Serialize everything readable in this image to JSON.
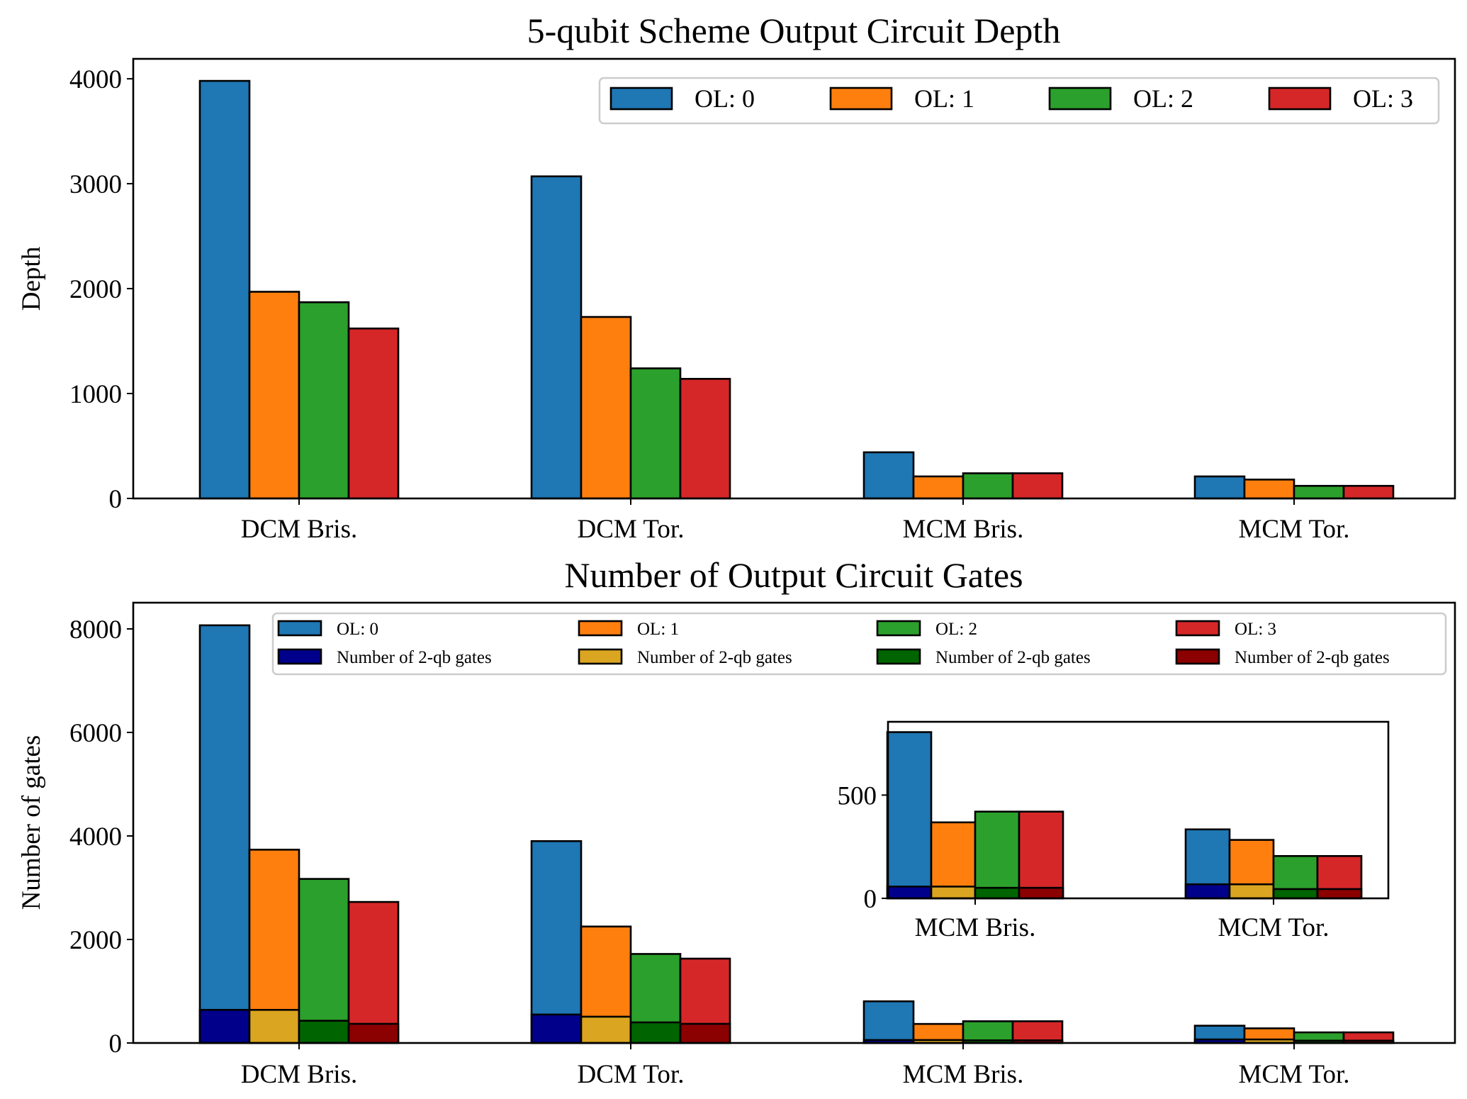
{
  "chart_data": [
    {
      "type": "bar",
      "title": "5-qubit Scheme Output Circuit Depth",
      "xlabel": "",
      "ylabel": "Depth",
      "categories": [
        "DCM Bris.",
        "DCM Tor.",
        "MCM Bris.",
        "MCM Tor."
      ],
      "yticks": [
        0,
        1000,
        2000,
        3000,
        4000
      ],
      "ylim": [
        0,
        4190
      ],
      "legend_placement": "top-right",
      "series": [
        {
          "name": "OL: 0",
          "color": "#1f77b4",
          "values": [
            3980,
            3070,
            440,
            210
          ]
        },
        {
          "name": "OL: 1",
          "color": "#ff7f0e",
          "values": [
            1970,
            1730,
            210,
            180
          ]
        },
        {
          "name": "OL: 2",
          "color": "#2ca02c",
          "values": [
            1870,
            1240,
            240,
            120
          ]
        },
        {
          "name": "OL: 3",
          "color": "#d62728",
          "values": [
            1620,
            1140,
            240,
            120
          ]
        }
      ]
    },
    {
      "type": "bar",
      "title": "Number of Output Circuit Gates",
      "xlabel": "",
      "ylabel": "Number of gates",
      "categories": [
        "DCM Bris.",
        "DCM Tor.",
        "MCM Bris.",
        "MCM Tor."
      ],
      "yticks": [
        0,
        2000,
        4000,
        6000,
        8000
      ],
      "ylim": [
        0,
        8507
      ],
      "legend_placement": "top-right",
      "series": [
        {
          "name": "OL: 0",
          "color": "#1f77b4",
          "values": [
            8070,
            3900,
            805,
            334
          ]
        },
        {
          "name": "OL: 1",
          "color": "#ff7f0e",
          "values": [
            3735,
            2250,
            368,
            283
          ]
        },
        {
          "name": "OL: 2",
          "color": "#2ca02c",
          "values": [
            3170,
            1720,
            420,
            205
          ]
        },
        {
          "name": "OL: 3",
          "color": "#d62728",
          "values": [
            2725,
            1630,
            420,
            205
          ]
        }
      ],
      "overlay_series": [
        {
          "name": "Number of 2-qb gates",
          "color": "#00008b",
          "values": [
            640,
            550,
            57,
            68
          ]
        },
        {
          "name": "Number of 2-qb gates",
          "color": "#daa520",
          "values": [
            640,
            508,
            57,
            68
          ]
        },
        {
          "name": "Number of 2-qb gates",
          "color": "#006400",
          "values": [
            430,
            398,
            51,
            45
          ]
        },
        {
          "name": "Number of 2-qb gates",
          "color": "#8b0000",
          "values": [
            370,
            370,
            51,
            45
          ]
        }
      ],
      "inset": {
        "categories": [
          "MCM Bris.",
          "MCM Tor."
        ],
        "yticks": [
          0,
          500
        ],
        "ylim": [
          0,
          855
        ]
      }
    }
  ]
}
